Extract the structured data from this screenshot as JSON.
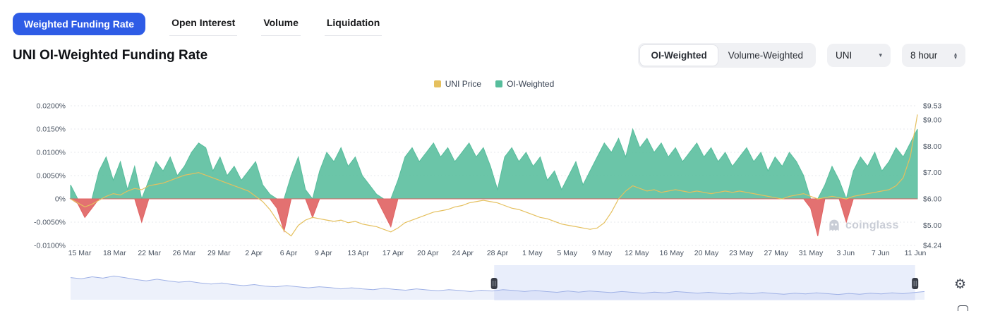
{
  "tabs": {
    "items": [
      {
        "label": "Weighted Funding Rate",
        "active": true
      },
      {
        "label": "Open Interest",
        "active": false
      },
      {
        "label": "Volume",
        "active": false
      },
      {
        "label": "Liquidation",
        "active": false
      }
    ]
  },
  "title": "UNI OI-Weighted Funding Rate",
  "controls": {
    "weighting_toggle": {
      "options": [
        {
          "label": "OI-Weighted",
          "selected": true
        },
        {
          "label": "Volume-Weighted",
          "selected": false
        }
      ]
    },
    "symbol_dropdown": {
      "value": "UNI"
    },
    "interval_dropdown": {
      "value": "8 hour"
    }
  },
  "legend": {
    "items": [
      {
        "label": "UNI Price",
        "color": "#e5c05e"
      },
      {
        "label": "OI-Weighted",
        "color": "#57bd9c"
      }
    ]
  },
  "watermark": {
    "text": "coinglass"
  },
  "colors": {
    "active_tab": "#2e5ce6",
    "positive": "#57bd9c",
    "negative": "#e06262",
    "price_line": "#e5c05e",
    "navigator_line": "#9fb1e6"
  },
  "chart_data": {
    "type": "area",
    "title": "UNI OI-Weighted Funding Rate",
    "x_tick_labels": [
      "15 Mar",
      "18 Mar",
      "22 Mar",
      "26 Mar",
      "29 Mar",
      "2 Apr",
      "6 Apr",
      "9 Apr",
      "13 Apr",
      "17 Apr",
      "20 Apr",
      "24 Apr",
      "28 Apr",
      "1 May",
      "5 May",
      "9 May",
      "12 May",
      "16 May",
      "20 May",
      "23 May",
      "27 May",
      "31 May",
      "3 Jun",
      "7 Jun",
      "11 Jun"
    ],
    "left_axis": {
      "title": "OI-Weighted Funding Rate",
      "unit": "%",
      "min": -0.01,
      "max": 0.02,
      "ticks": [
        "0.0200%",
        "0.0150%",
        "0.0100%",
        "0.0050%",
        "0%",
        "-0.0050%",
        "-0.0100%"
      ],
      "tick_values": [
        0.02,
        0.015,
        0.01,
        0.005,
        0,
        -0.005,
        -0.01
      ]
    },
    "right_axis": {
      "title": "UNI Price",
      "unit": "USD",
      "min": 4.24,
      "max": 9.53,
      "ticks": [
        "$9.53",
        "$9.00",
        "$8.00",
        "$7.00",
        "$6.00",
        "$5.00",
        "$4.24"
      ],
      "tick_values": [
        9.53,
        9.0,
        8.0,
        7.0,
        6.0,
        5.0,
        4.24
      ]
    },
    "series": [
      {
        "name": "OI-Weighted",
        "type": "area",
        "axis": "left",
        "unit": "%",
        "color_positive": "#57bd9c",
        "color_negative": "#e06262",
        "values": [
          0.003,
          -0.001,
          -0.004,
          -0.002,
          0.006,
          0.009,
          0.004,
          0.008,
          0.002,
          0.007,
          -0.005,
          0.004,
          0.008,
          0.006,
          0.009,
          0.005,
          0.007,
          0.01,
          0.012,
          0.011,
          0.006,
          0.009,
          0.005,
          0.007,
          0.004,
          0.006,
          0.008,
          0.003,
          0.001,
          -0.002,
          -0.007,
          0.005,
          0.009,
          0.002,
          -0.004,
          0.006,
          0.01,
          0.008,
          0.011,
          0.007,
          0.009,
          0.005,
          0.003,
          0.001,
          -0.003,
          -0.006,
          0.004,
          0.009,
          0.011,
          0.008,
          0.01,
          0.012,
          0.009,
          0.011,
          0.008,
          0.01,
          0.012,
          0.009,
          0.011,
          0.007,
          0.002,
          0.009,
          0.011,
          0.008,
          0.01,
          0.007,
          0.009,
          0.004,
          0.006,
          0.002,
          0.005,
          0.008,
          0.003,
          0.006,
          0.009,
          0.012,
          0.01,
          0.013,
          0.009,
          0.015,
          0.011,
          0.013,
          0.01,
          0.012,
          0.009,
          0.011,
          0.008,
          0.01,
          0.012,
          0.009,
          0.011,
          0.008,
          0.01,
          0.007,
          0.009,
          0.011,
          0.008,
          0.01,
          0.006,
          0.009,
          0.007,
          0.01,
          0.008,
          0.005,
          -0.002,
          -0.008,
          0.003,
          0.007,
          0.004,
          -0.005,
          0.006,
          0.009,
          0.007,
          0.01,
          0.006,
          0.008,
          0.011,
          0.009,
          0.012,
          0.015
        ]
      },
      {
        "name": "UNI Price",
        "type": "line",
        "axis": "right",
        "unit": "USD",
        "color": "#e5c05e",
        "values": [
          6.0,
          5.85,
          5.7,
          5.8,
          5.95,
          6.1,
          6.2,
          6.15,
          6.3,
          6.4,
          6.35,
          6.5,
          6.55,
          6.6,
          6.7,
          6.8,
          6.9,
          6.95,
          7.0,
          6.9,
          6.8,
          6.7,
          6.6,
          6.5,
          6.4,
          6.3,
          6.1,
          5.9,
          5.6,
          5.2,
          4.8,
          4.6,
          5.0,
          5.2,
          5.3,
          5.25,
          5.2,
          5.15,
          5.2,
          5.1,
          5.15,
          5.05,
          5.0,
          4.95,
          4.85,
          4.75,
          4.9,
          5.1,
          5.2,
          5.3,
          5.4,
          5.5,
          5.55,
          5.6,
          5.7,
          5.75,
          5.85,
          5.9,
          5.95,
          5.9,
          5.85,
          5.75,
          5.65,
          5.6,
          5.5,
          5.4,
          5.3,
          5.25,
          5.15,
          5.05,
          5.0,
          4.95,
          4.9,
          4.85,
          4.9,
          5.1,
          5.5,
          6.0,
          6.3,
          6.5,
          6.4,
          6.3,
          6.35,
          6.25,
          6.3,
          6.35,
          6.3,
          6.25,
          6.3,
          6.25,
          6.2,
          6.25,
          6.3,
          6.25,
          6.3,
          6.25,
          6.2,
          6.15,
          6.1,
          6.05,
          6.0,
          6.1,
          6.15,
          6.2,
          6.1,
          6.0,
          6.05,
          6.1,
          6.05,
          6.0,
          6.1,
          6.15,
          6.2,
          6.25,
          6.3,
          6.35,
          6.5,
          6.8,
          7.6,
          9.2
        ]
      }
    ],
    "navigator": {
      "values": [
        0.72,
        0.68,
        0.75,
        0.7,
        0.78,
        0.72,
        0.65,
        0.6,
        0.66,
        0.6,
        0.55,
        0.58,
        0.52,
        0.48,
        0.52,
        0.46,
        0.42,
        0.46,
        0.4,
        0.38,
        0.42,
        0.38,
        0.34,
        0.38,
        0.35,
        0.3,
        0.34,
        0.3,
        0.27,
        0.32,
        0.28,
        0.25,
        0.3,
        0.26,
        0.23,
        0.27,
        0.24,
        0.2,
        0.25,
        0.22,
        0.27,
        0.24,
        0.2,
        0.24,
        0.2,
        0.17,
        0.22,
        0.18,
        0.22,
        0.19,
        0.16,
        0.2,
        0.17,
        0.14,
        0.18,
        0.15,
        0.2,
        0.17,
        0.14,
        0.17,
        0.14,
        0.11,
        0.15,
        0.12,
        0.16,
        0.13,
        0.1,
        0.14,
        0.11,
        0.15,
        0.12,
        0.09,
        0.13,
        0.1,
        0.14,
        0.11,
        0.15,
        0.12,
        0.16,
        0.2
      ],
      "selection_start_frac": 0.496,
      "selection_end_frac": 0.989
    }
  }
}
